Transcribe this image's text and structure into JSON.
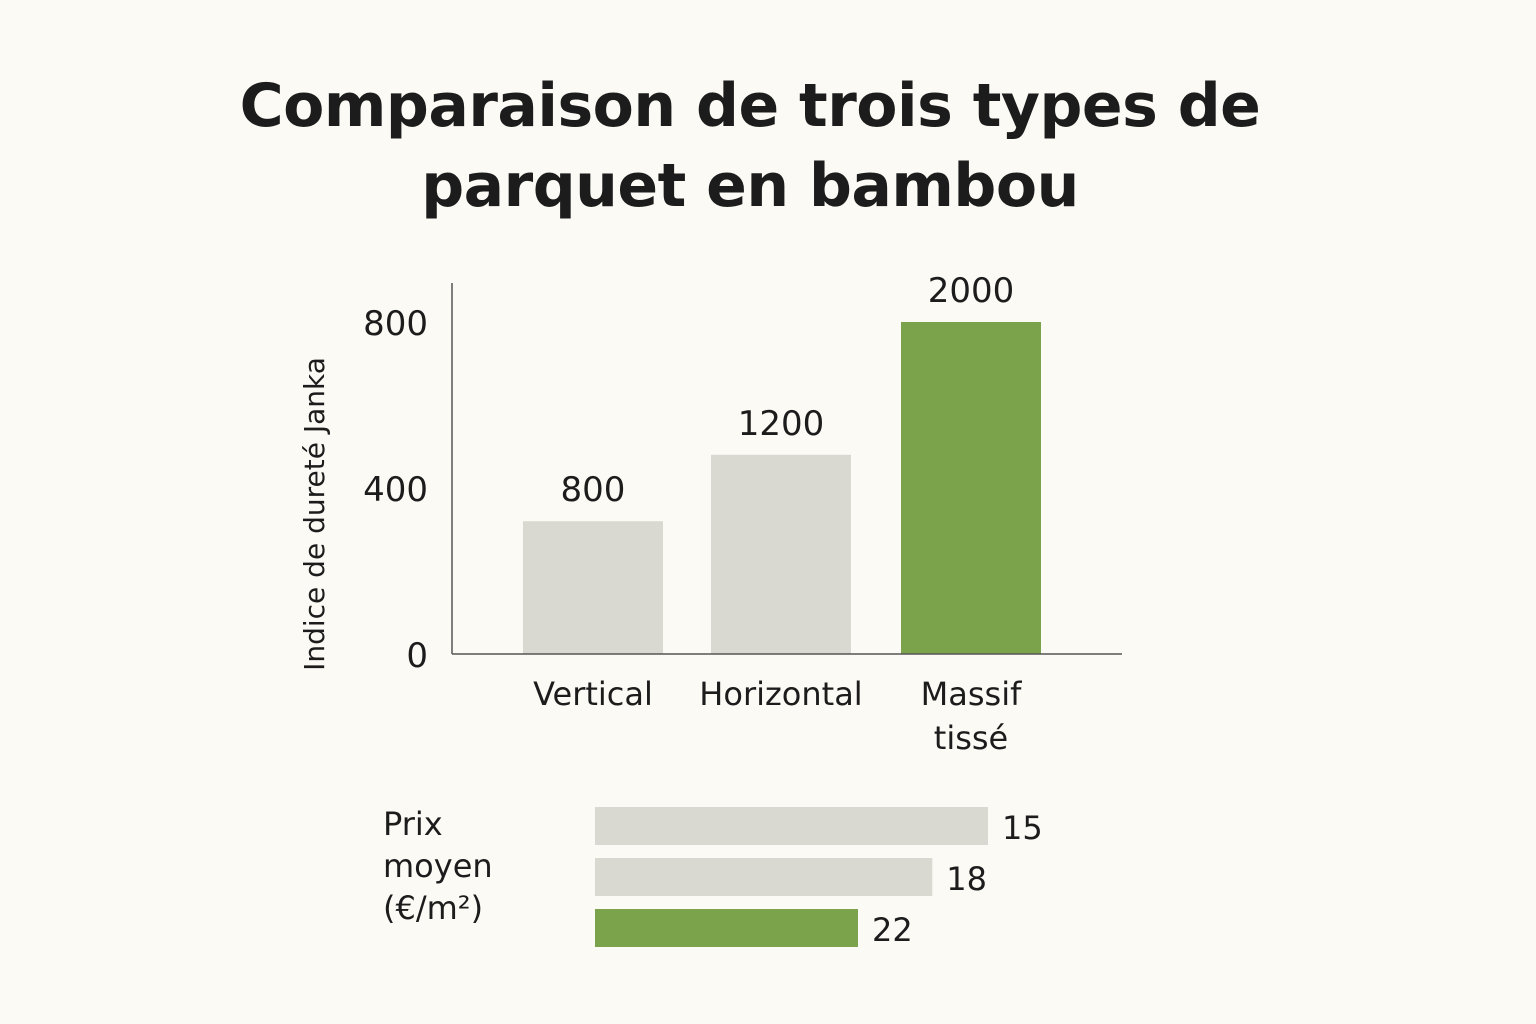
{
  "title_lines": [
    "Comparaison de trois types de",
    "parquet en bambou"
  ],
  "colors": {
    "neutral_bar": "#d9d9d2",
    "highlight_bar": "#7aa34c",
    "axis": "#555555",
    "text": "#1c1c1c",
    "background": "#fbfaf5"
  },
  "chart_data": [
    {
      "type": "bar",
      "categories": [
        "Vertical",
        "Horizontal",
        "Massif tissé"
      ],
      "category_lines": [
        [
          "Vertical"
        ],
        [
          "Horizontal"
        ],
        [
          "Massif",
          "tissé"
        ]
      ],
      "values": [
        800,
        1200,
        2000
      ],
      "data_labels": [
        "800",
        "1200",
        "2000"
      ],
      "highlight_index": 2,
      "ylabel": "Indice de dureté Janka",
      "yticks": [
        0,
        400,
        800
      ],
      "ytick_labels": [
        "0",
        "400",
        "800"
      ],
      "ylim": [
        0,
        800
      ],
      "grid": false,
      "legend": "none"
    },
    {
      "type": "bar",
      "orientation": "horizontal",
      "label_lines": [
        "Prix",
        "moyen",
        "(€/m²)"
      ],
      "values": [
        15,
        18,
        22
      ],
      "data_labels": [
        "15",
        "18",
        "22"
      ],
      "highlight_index": 2,
      "grid": false,
      "legend": "none"
    }
  ]
}
